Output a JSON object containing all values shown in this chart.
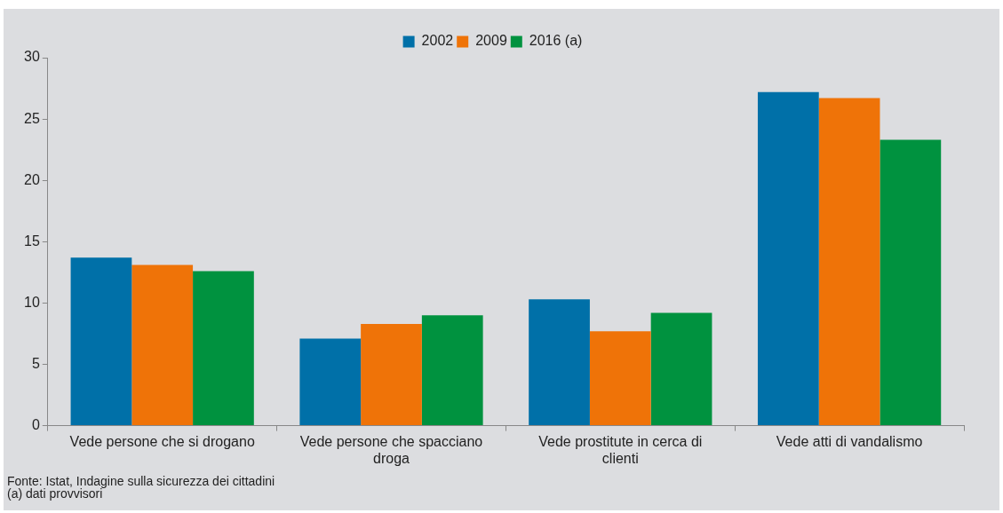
{
  "chart_data": {
    "type": "bar",
    "categories": [
      "Vede persone che si drogano",
      "Vede persone che spacciano droga",
      "Vede prostitute in cerca di clienti",
      "Vede atti di vandalismo"
    ],
    "series": [
      {
        "name": "2002",
        "color": "#0070a8",
        "values": [
          13.7,
          7.1,
          10.3,
          27.2
        ]
      },
      {
        "name": "2009",
        "color": "#ef7308",
        "values": [
          13.1,
          8.3,
          7.7,
          26.7
        ]
      },
      {
        "name": "2016 (a)",
        "color": "#00923f",
        "values": [
          12.6,
          9.0,
          9.2,
          23.3
        ]
      }
    ],
    "ylim": [
      0,
      30
    ],
    "yticks": [
      0,
      5,
      10,
      15,
      20,
      25,
      30
    ],
    "grid": false,
    "legend": "top",
    "annotations": [
      "Fonte: Istat, Indagine sulla sicurezza dei cittadini",
      "(a) dati provvisori"
    ]
  }
}
